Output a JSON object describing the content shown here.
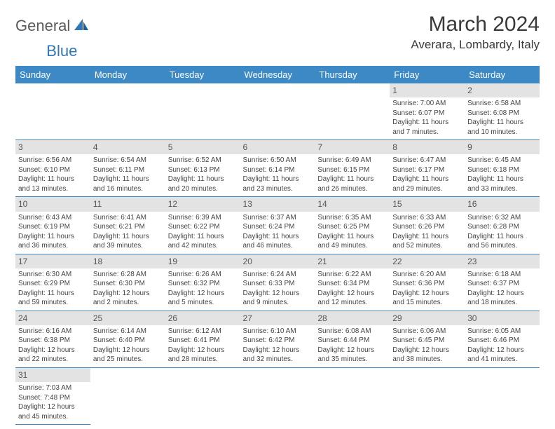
{
  "logo": {
    "general": "General",
    "blue": "Blue"
  },
  "title": "March 2024",
  "location": "Averara, Lombardy, Italy",
  "colors": {
    "header_bg": "#3c89c6",
    "header_text": "#ffffff",
    "daynum_bg": "#e3e3e3",
    "row_border": "#3c89c6",
    "logo_grey": "#5a5a5a",
    "logo_blue": "#2f77b8"
  },
  "weekdays": [
    "Sunday",
    "Monday",
    "Tuesday",
    "Wednesday",
    "Thursday",
    "Friday",
    "Saturday"
  ],
  "weeks": [
    [
      null,
      null,
      null,
      null,
      null,
      {
        "day": "1",
        "sunrise": "7:00 AM",
        "sunset": "6:07 PM",
        "daylight": "11 hours and 7 minutes."
      },
      {
        "day": "2",
        "sunrise": "6:58 AM",
        "sunset": "6:08 PM",
        "daylight": "11 hours and 10 minutes."
      }
    ],
    [
      {
        "day": "3",
        "sunrise": "6:56 AM",
        "sunset": "6:10 PM",
        "daylight": "11 hours and 13 minutes."
      },
      {
        "day": "4",
        "sunrise": "6:54 AM",
        "sunset": "6:11 PM",
        "daylight": "11 hours and 16 minutes."
      },
      {
        "day": "5",
        "sunrise": "6:52 AM",
        "sunset": "6:13 PM",
        "daylight": "11 hours and 20 minutes."
      },
      {
        "day": "6",
        "sunrise": "6:50 AM",
        "sunset": "6:14 PM",
        "daylight": "11 hours and 23 minutes."
      },
      {
        "day": "7",
        "sunrise": "6:49 AM",
        "sunset": "6:15 PM",
        "daylight": "11 hours and 26 minutes."
      },
      {
        "day": "8",
        "sunrise": "6:47 AM",
        "sunset": "6:17 PM",
        "daylight": "11 hours and 29 minutes."
      },
      {
        "day": "9",
        "sunrise": "6:45 AM",
        "sunset": "6:18 PM",
        "daylight": "11 hours and 33 minutes."
      }
    ],
    [
      {
        "day": "10",
        "sunrise": "6:43 AM",
        "sunset": "6:19 PM",
        "daylight": "11 hours and 36 minutes."
      },
      {
        "day": "11",
        "sunrise": "6:41 AM",
        "sunset": "6:21 PM",
        "daylight": "11 hours and 39 minutes."
      },
      {
        "day": "12",
        "sunrise": "6:39 AM",
        "sunset": "6:22 PM",
        "daylight": "11 hours and 42 minutes."
      },
      {
        "day": "13",
        "sunrise": "6:37 AM",
        "sunset": "6:24 PM",
        "daylight": "11 hours and 46 minutes."
      },
      {
        "day": "14",
        "sunrise": "6:35 AM",
        "sunset": "6:25 PM",
        "daylight": "11 hours and 49 minutes."
      },
      {
        "day": "15",
        "sunrise": "6:33 AM",
        "sunset": "6:26 PM",
        "daylight": "11 hours and 52 minutes."
      },
      {
        "day": "16",
        "sunrise": "6:32 AM",
        "sunset": "6:28 PM",
        "daylight": "11 hours and 56 minutes."
      }
    ],
    [
      {
        "day": "17",
        "sunrise": "6:30 AM",
        "sunset": "6:29 PM",
        "daylight": "11 hours and 59 minutes."
      },
      {
        "day": "18",
        "sunrise": "6:28 AM",
        "sunset": "6:30 PM",
        "daylight": "12 hours and 2 minutes."
      },
      {
        "day": "19",
        "sunrise": "6:26 AM",
        "sunset": "6:32 PM",
        "daylight": "12 hours and 5 minutes."
      },
      {
        "day": "20",
        "sunrise": "6:24 AM",
        "sunset": "6:33 PM",
        "daylight": "12 hours and 9 minutes."
      },
      {
        "day": "21",
        "sunrise": "6:22 AM",
        "sunset": "6:34 PM",
        "daylight": "12 hours and 12 minutes."
      },
      {
        "day": "22",
        "sunrise": "6:20 AM",
        "sunset": "6:36 PM",
        "daylight": "12 hours and 15 minutes."
      },
      {
        "day": "23",
        "sunrise": "6:18 AM",
        "sunset": "6:37 PM",
        "daylight": "12 hours and 18 minutes."
      }
    ],
    [
      {
        "day": "24",
        "sunrise": "6:16 AM",
        "sunset": "6:38 PM",
        "daylight": "12 hours and 22 minutes."
      },
      {
        "day": "25",
        "sunrise": "6:14 AM",
        "sunset": "6:40 PM",
        "daylight": "12 hours and 25 minutes."
      },
      {
        "day": "26",
        "sunrise": "6:12 AM",
        "sunset": "6:41 PM",
        "daylight": "12 hours and 28 minutes."
      },
      {
        "day": "27",
        "sunrise": "6:10 AM",
        "sunset": "6:42 PM",
        "daylight": "12 hours and 32 minutes."
      },
      {
        "day": "28",
        "sunrise": "6:08 AM",
        "sunset": "6:44 PM",
        "daylight": "12 hours and 35 minutes."
      },
      {
        "day": "29",
        "sunrise": "6:06 AM",
        "sunset": "6:45 PM",
        "daylight": "12 hours and 38 minutes."
      },
      {
        "day": "30",
        "sunrise": "6:05 AM",
        "sunset": "6:46 PM",
        "daylight": "12 hours and 41 minutes."
      }
    ],
    [
      {
        "day": "31",
        "sunrise": "7:03 AM",
        "sunset": "7:48 PM",
        "daylight": "12 hours and 45 minutes."
      },
      null,
      null,
      null,
      null,
      null,
      null
    ]
  ],
  "labels": {
    "sunrise": "Sunrise:",
    "sunset": "Sunset:",
    "daylight": "Daylight:"
  }
}
